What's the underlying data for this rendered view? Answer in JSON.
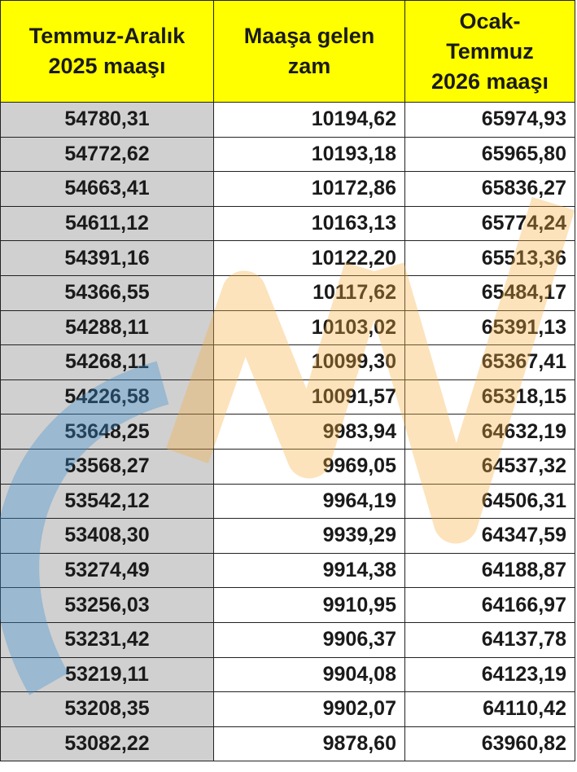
{
  "table": {
    "header": [
      [
        "Temmuz-Aralık",
        "2025 maaşı"
      ],
      [
        "Maaşa gelen",
        "zam"
      ],
      [
        "Ocak-",
        "Temmuz",
        "2026 maaşı"
      ]
    ],
    "rows": [
      [
        "54780,31",
        "10194,62",
        "65974,93"
      ],
      [
        "54772,62",
        "10193,18",
        "65965,80"
      ],
      [
        "54663,41",
        "10172,86",
        "65836,27"
      ],
      [
        "54611,12",
        "10163,13",
        "65774,24"
      ],
      [
        "54391,16",
        "10122,20",
        "65513,36"
      ],
      [
        "54366,55",
        "10117,62",
        "65484,17"
      ],
      [
        "54288,11",
        "10103,02",
        "65391,13"
      ],
      [
        "54268,11",
        "10099,30",
        "65367,41"
      ],
      [
        "54226,58",
        "10091,57",
        "65318,15"
      ],
      [
        "53648,25",
        "9983,94",
        "64632,19"
      ],
      [
        "53568,27",
        "9969,05",
        "64537,32"
      ],
      [
        "53542,12",
        "9964,19",
        "64506,31"
      ],
      [
        "53408,30",
        "9939,29",
        "64347,59"
      ],
      [
        "53274,49",
        "9914,38",
        "64188,87"
      ],
      [
        "53256,03",
        "9910,95",
        "64166,97"
      ],
      [
        "53231,42",
        "9906,37",
        "64137,78"
      ],
      [
        "53219,11",
        "9904,08",
        "64123,19"
      ],
      [
        "53208,35",
        "9902,07",
        "64110,42"
      ],
      [
        "53082,22",
        "9878,60",
        "63960,82"
      ]
    ]
  }
}
